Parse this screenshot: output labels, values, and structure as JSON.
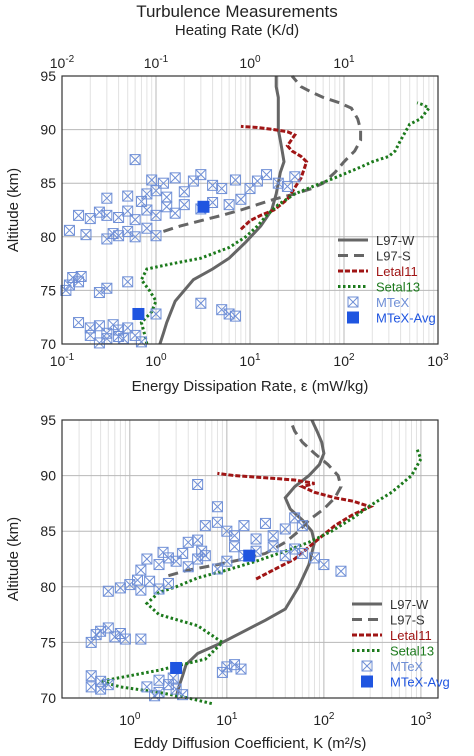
{
  "figure": {
    "title": "Turbulence Measurements",
    "top_axis_label": "Heating Rate (K/d)"
  },
  "colors": {
    "L97-W": "#666666",
    "L97-S": "#666666",
    "Letal11": "#a01515",
    "Setal13": "#1c7a1c",
    "MTeX": "#6f8fd6",
    "MTeX-Avg": "#1f55e0",
    "grid": "#cccccc"
  },
  "chart_data": [
    {
      "type": "line",
      "id": "top",
      "xlabel": "Energy Dissipation Rate,  ε (mW/kg)",
      "ylabel": "Altitude (km)",
      "xscale": "log",
      "xlim": [
        0.1,
        1000
      ],
      "ylim": [
        70,
        95
      ],
      "x_ticks": [
        "10^-1",
        "10^0",
        "10^1",
        "10^2",
        "10^3"
      ],
      "y_ticks": [
        70,
        75,
        80,
        85,
        90,
        95
      ],
      "top_axis": {
        "label": "Heating Rate (K/d)",
        "ticks": [
          "10^-2",
          "10^-1",
          "10^0",
          "10^1"
        ]
      },
      "grid": true,
      "legend_position": "bottom-right",
      "legend": [
        "L97-W",
        "L97-S",
        "Letal11",
        "Setal13",
        "MTeX",
        "MTeX-Avg"
      ],
      "series": [
        {
          "name": "L97-W",
          "style": "solid",
          "x": [
            1.1,
            1.2,
            1.3,
            1.6,
            2.5,
            4.0,
            6.0,
            9.0,
            13,
            17,
            19,
            20,
            21,
            23,
            22,
            21,
            20,
            20,
            20,
            20,
            19,
            19,
            19
          ],
          "y": [
            70,
            71,
            72,
            74,
            76,
            77,
            78,
            79.5,
            81,
            82.5,
            84,
            85,
            86,
            87,
            88,
            89,
            90,
            91,
            92,
            93,
            94,
            94.7,
            95
          ]
        },
        {
          "name": "L97-S",
          "style": "dashed",
          "x": [
            1.2,
            1.8,
            3.0,
            5.0,
            8,
            12,
            18,
            30,
            45,
            60,
            80,
            100,
            130,
            150,
            150,
            140,
            120,
            90,
            60,
            45,
            35,
            28
          ],
          "y": [
            80.5,
            81,
            81.5,
            82,
            82.5,
            83,
            83.5,
            84,
            84.5,
            85,
            86,
            87,
            88,
            89,
            90,
            91,
            92,
            92.5,
            93,
            93.5,
            94,
            95
          ]
        },
        {
          "name": "Letal11",
          "style": "dotted-dense",
          "x": [
            8,
            10,
            13,
            18,
            25,
            35,
            40,
            35,
            28,
            25,
            30,
            25,
            18,
            12,
            8
          ],
          "y": [
            80.7,
            81.5,
            82,
            82.5,
            83.5,
            85.5,
            87,
            87.5,
            88,
            88.5,
            89.5,
            89.8,
            90,
            90.2,
            90.3
          ]
        },
        {
          "name": "Setal13",
          "style": "dotted",
          "x": [
            0.8,
            0.75,
            0.7,
            0.9,
            1.0,
            0.85,
            0.7,
            0.8,
            1.5,
            3,
            6,
            9,
            12,
            15,
            20,
            30,
            50,
            80,
            150,
            200,
            300,
            350,
            400,
            500,
            650,
            800,
            700,
            600
          ],
          "y": [
            70,
            71,
            72,
            73,
            74,
            75,
            76,
            77,
            77.5,
            78,
            79,
            80,
            81,
            82,
            83,
            84,
            84.8,
            85.5,
            86.5,
            87,
            87.5,
            88,
            89,
            90.5,
            91,
            92,
            92.3,
            92.5
          ]
        }
      ],
      "scatter": {
        "name": "MTeX",
        "points": [
          [
            0.15,
            72
          ],
          [
            0.2,
            71.5
          ],
          [
            0.25,
            71.7
          ],
          [
            0.3,
            71
          ],
          [
            0.35,
            71.8
          ],
          [
            0.4,
            71.3
          ],
          [
            0.45,
            70.5
          ],
          [
            0.5,
            71.5
          ],
          [
            0.6,
            70.8
          ],
          [
            0.7,
            70.2
          ],
          [
            0.3,
            70.5
          ],
          [
            0.2,
            70.8
          ],
          [
            0.25,
            70.1
          ],
          [
            0.4,
            70.7
          ],
          [
            0.12,
            75.5
          ],
          [
            0.13,
            76.2
          ],
          [
            0.15,
            75.8
          ],
          [
            0.11,
            75
          ],
          [
            0.3,
            75.2
          ],
          [
            0.5,
            75.8
          ],
          [
            0.25,
            74.8
          ],
          [
            0.16,
            76.3
          ],
          [
            0.18,
            80.2
          ],
          [
            0.12,
            80.6
          ],
          [
            0.3,
            79.8
          ],
          [
            0.35,
            80.3
          ],
          [
            0.5,
            80.5
          ],
          [
            0.6,
            80
          ],
          [
            0.8,
            80.8
          ],
          [
            1.0,
            80.1
          ],
          [
            0.4,
            80.1
          ],
          [
            0.15,
            82
          ],
          [
            0.2,
            81.7
          ],
          [
            0.25,
            82.3
          ],
          [
            0.3,
            82
          ],
          [
            0.4,
            81.8
          ],
          [
            0.5,
            82.4
          ],
          [
            0.6,
            81.6
          ],
          [
            0.8,
            82.5
          ],
          [
            1.0,
            82
          ],
          [
            1.3,
            82.8
          ],
          [
            1.6,
            82.2
          ],
          [
            2.0,
            83
          ],
          [
            3.0,
            82.6
          ],
          [
            4.0,
            83.2
          ],
          [
            6.0,
            83
          ],
          [
            8.0,
            83.5
          ],
          [
            0.7,
            83.3
          ],
          [
            0.3,
            83.6
          ],
          [
            0.5,
            83.8
          ],
          [
            0.8,
            84
          ],
          [
            1.0,
            84.3
          ],
          [
            1.3,
            83.7
          ],
          [
            2.0,
            84.2
          ],
          [
            2.5,
            85.2
          ],
          [
            3.0,
            85.8
          ],
          [
            4.0,
            84.8
          ],
          [
            5.0,
            84.5
          ],
          [
            7.0,
            85.3
          ],
          [
            10,
            84.5
          ],
          [
            12,
            85.2
          ],
          [
            15,
            85.8
          ],
          [
            20,
            85
          ],
          [
            25,
            84.7
          ],
          [
            30,
            85.6
          ],
          [
            1.6,
            85.5
          ],
          [
            1.2,
            85
          ],
          [
            0.9,
            85.3
          ],
          [
            0.6,
            87.2
          ],
          [
            3.0,
            73.8
          ],
          [
            5.0,
            73.2
          ],
          [
            6.0,
            72.8
          ],
          [
            7.0,
            72.6
          ],
          [
            1.0,
            72.8
          ]
        ]
      },
      "avg_points": {
        "name": "MTeX-Avg",
        "points": [
          [
            3.2,
            82.8
          ],
          [
            0.65,
            72.8
          ]
        ]
      }
    },
    {
      "type": "line",
      "id": "bottom",
      "xlabel": "Eddy Diffusion Coefficient, K (m²/s)",
      "ylabel": "Altitude (km)",
      "xscale": "log",
      "xlim": [
        0.2,
        1500
      ],
      "ylim": [
        70,
        95
      ],
      "x_ticks": [
        "10^0",
        "10^1",
        "10^2",
        "10^3"
      ],
      "y_ticks": [
        70,
        75,
        80,
        85,
        90,
        95
      ],
      "grid": true,
      "legend_position": "bottom-right",
      "legend": [
        "L97-W",
        "L97-S",
        "Letal11",
        "Setal13",
        "MTeX",
        "MTeX-Avg"
      ],
      "series": [
        {
          "name": "L97-W",
          "style": "solid",
          "x": [
            3,
            3.2,
            3.5,
            3.8,
            5,
            9,
            15,
            25,
            40,
            55,
            70,
            80,
            75,
            60,
            45,
            40,
            50,
            70,
            90,
            100,
            95,
            85,
            75
          ],
          "y": [
            70,
            71,
            72,
            73,
            74,
            75,
            76,
            77,
            78,
            80,
            82,
            84,
            85,
            86,
            87,
            88,
            89,
            90,
            91,
            92,
            93,
            94,
            95
          ]
        },
        {
          "name": "L97-S",
          "style": "dashed",
          "x": [
            2.5,
            4,
            8,
            15,
            25,
            40,
            55,
            70,
            100,
            130,
            150,
            140,
            110,
            80,
            60,
            50,
            45
          ],
          "y": [
            81,
            81.5,
            82,
            82.5,
            83,
            84,
            85,
            86,
            87,
            88,
            89,
            90,
            91,
            92,
            93,
            94,
            95
          ]
        },
        {
          "name": "Letal11",
          "style": "dotted-dense",
          "x": [
            20,
            30,
            50,
            80,
            130,
            200,
            300,
            200,
            130,
            80,
            60,
            80,
            50,
            25,
            12,
            8
          ],
          "y": [
            80.7,
            81.5,
            82.5,
            84,
            85.5,
            86.5,
            87.2,
            87.7,
            88,
            88.5,
            89,
            89.3,
            89.6,
            89.8,
            90,
            90.2
          ]
        },
        {
          "name": "Setal13",
          "style": "dotted",
          "x": [
            7,
            4,
            2,
            0.8,
            0.5,
            2,
            6,
            9,
            5,
            2,
            1.5,
            2,
            3,
            5,
            10,
            20,
            40,
            70,
            120,
            200,
            300,
            500,
            800,
            1000,
            900
          ],
          "y": [
            69.5,
            70,
            70.5,
            71,
            71.5,
            72.5,
            73.5,
            75,
            76.5,
            77.5,
            78.5,
            79.5,
            80,
            80.8,
            81.5,
            82.3,
            83.2,
            84,
            85,
            86.2,
            87.3,
            88.5,
            90,
            91.5,
            92.5
          ]
        }
      ],
      "scatter": {
        "name": "MTeX",
        "points": [
          [
            0.4,
            72
          ],
          [
            0.5,
            71.5
          ],
          [
            0.6,
            71.2
          ],
          [
            0.4,
            71
          ],
          [
            0.5,
            70.8
          ],
          [
            2,
            71.6
          ],
          [
            2.5,
            71.2
          ],
          [
            3,
            70.8
          ],
          [
            1.5,
            71
          ],
          [
            2,
            70.5
          ],
          [
            1.8,
            70.2
          ],
          [
            3.5,
            70.3
          ],
          [
            2.8,
            71.8
          ],
          [
            0.5,
            76
          ],
          [
            0.6,
            76.3
          ],
          [
            0.7,
            75.5
          ],
          [
            0.8,
            75.8
          ],
          [
            0.9,
            75.3
          ],
          [
            0.4,
            75
          ],
          [
            1.3,
            75.3
          ],
          [
            0.45,
            75.7
          ],
          [
            10,
            72.8
          ],
          [
            12,
            73
          ],
          [
            14,
            72.6
          ],
          [
            9,
            72.3
          ],
          [
            0.6,
            79.6
          ],
          [
            0.8,
            79.9
          ],
          [
            1.0,
            80.2
          ],
          [
            1.3,
            79.7
          ],
          [
            1.6,
            80.5
          ],
          [
            2.0,
            79.8
          ],
          [
            2.5,
            80.3
          ],
          [
            1.2,
            80.6
          ],
          [
            1.5,
            82.5
          ],
          [
            2,
            82
          ],
          [
            2.5,
            82.6
          ],
          [
            3,
            82.3
          ],
          [
            4,
            81.8
          ],
          [
            5,
            82.5
          ],
          [
            6,
            82.8
          ],
          [
            8,
            81.6
          ],
          [
            10,
            82.3
          ],
          [
            1.3,
            81.5
          ],
          [
            2.2,
            83.1
          ],
          [
            3.5,
            83
          ],
          [
            5.5,
            83.2
          ],
          [
            12,
            83.6
          ],
          [
            15,
            82.8
          ],
          [
            20,
            83.2
          ],
          [
            30,
            83.6
          ],
          [
            40,
            82.8
          ],
          [
            50,
            83.4
          ],
          [
            60,
            83
          ],
          [
            80,
            82.6
          ],
          [
            100,
            82
          ],
          [
            150,
            81.4
          ],
          [
            4,
            84
          ],
          [
            5,
            84.2
          ],
          [
            6,
            85.5
          ],
          [
            8,
            85.8
          ],
          [
            10,
            85
          ],
          [
            12,
            84.6
          ],
          [
            15,
            85.5
          ],
          [
            20,
            84.3
          ],
          [
            25,
            85.7
          ],
          [
            30,
            84.6
          ],
          [
            40,
            85.2
          ],
          [
            50,
            86.2
          ],
          [
            60,
            85.5
          ],
          [
            8,
            87.2
          ],
          [
            5,
            89.2
          ]
        ]
      },
      "avg_points": {
        "name": "MTeX-Avg",
        "points": [
          [
            17,
            82.8
          ],
          [
            3,
            72.7
          ]
        ]
      }
    }
  ]
}
